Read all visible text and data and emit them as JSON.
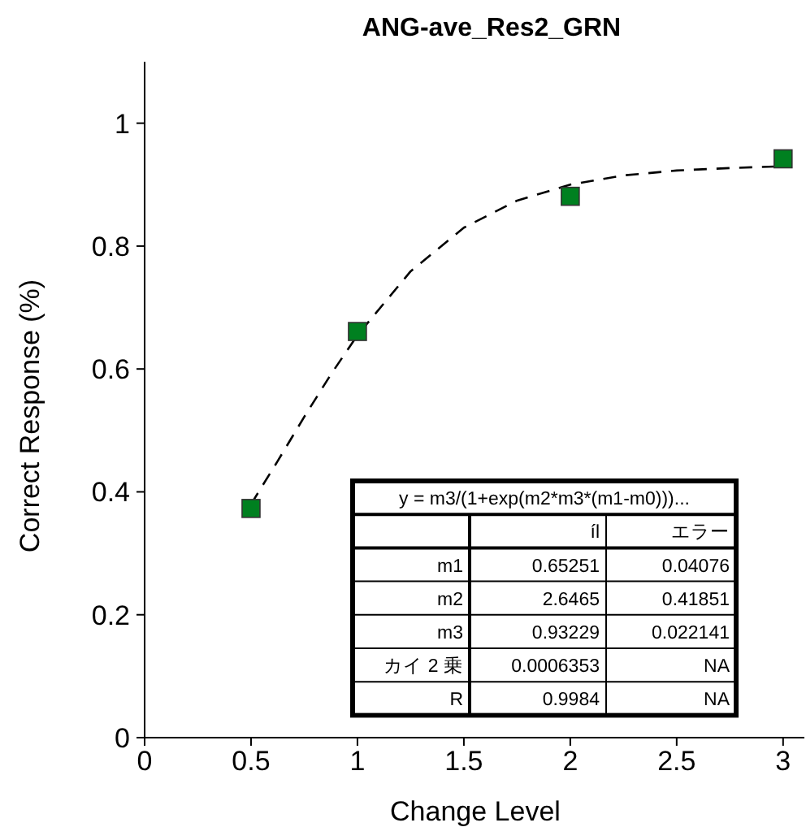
{
  "chart_data": {
    "type": "scatter",
    "title": "ANG-ave_Res2_GRN",
    "xlabel": "Change Level",
    "ylabel": "Correct Response (%)",
    "xlim": [
      0,
      3.1
    ],
    "xticks": [
      0,
      0.5,
      1,
      1.5,
      2,
      2.5,
      3
    ],
    "ylim": [
      0,
      1.1
    ],
    "yticks": [
      0,
      0.2,
      0.4,
      0.6,
      0.8,
      1
    ],
    "grid": false,
    "marker": "square",
    "series": [
      {
        "type": "line",
        "color": "#000000",
        "line_style": "dashed",
        "marker": "none",
        "x": [
          0.5,
          0.625,
          0.75,
          0.875,
          1,
          1.25,
          1.5,
          1.75,
          2,
          2.25,
          2.5,
          2.75,
          3
        ],
        "values": [
          0.38,
          0.45,
          0.522,
          0.591,
          0.655,
          0.759,
          0.83,
          0.874,
          0.9,
          0.915,
          0.923,
          0.927,
          0.93
        ]
      },
      {
        "color": "#008020",
        "x": [
          0.5,
          1,
          2,
          3
        ],
        "values": [
          0.373,
          0.661,
          0.881,
          0.942
        ]
      }
    ],
    "annotations": [
      "y = m3/(1+exp(m2*m3*(m1-m0)))...",
      "íl",
      "エラー",
      "m1",
      "0.65251",
      "0.04076",
      "m2",
      "2.6465",
      "0.41851",
      "m3",
      "0.93229",
      "0.022141",
      "カイ 2 乗",
      "0.0006353",
      "NA",
      "R",
      "0.9984",
      "NA"
    ]
  }
}
